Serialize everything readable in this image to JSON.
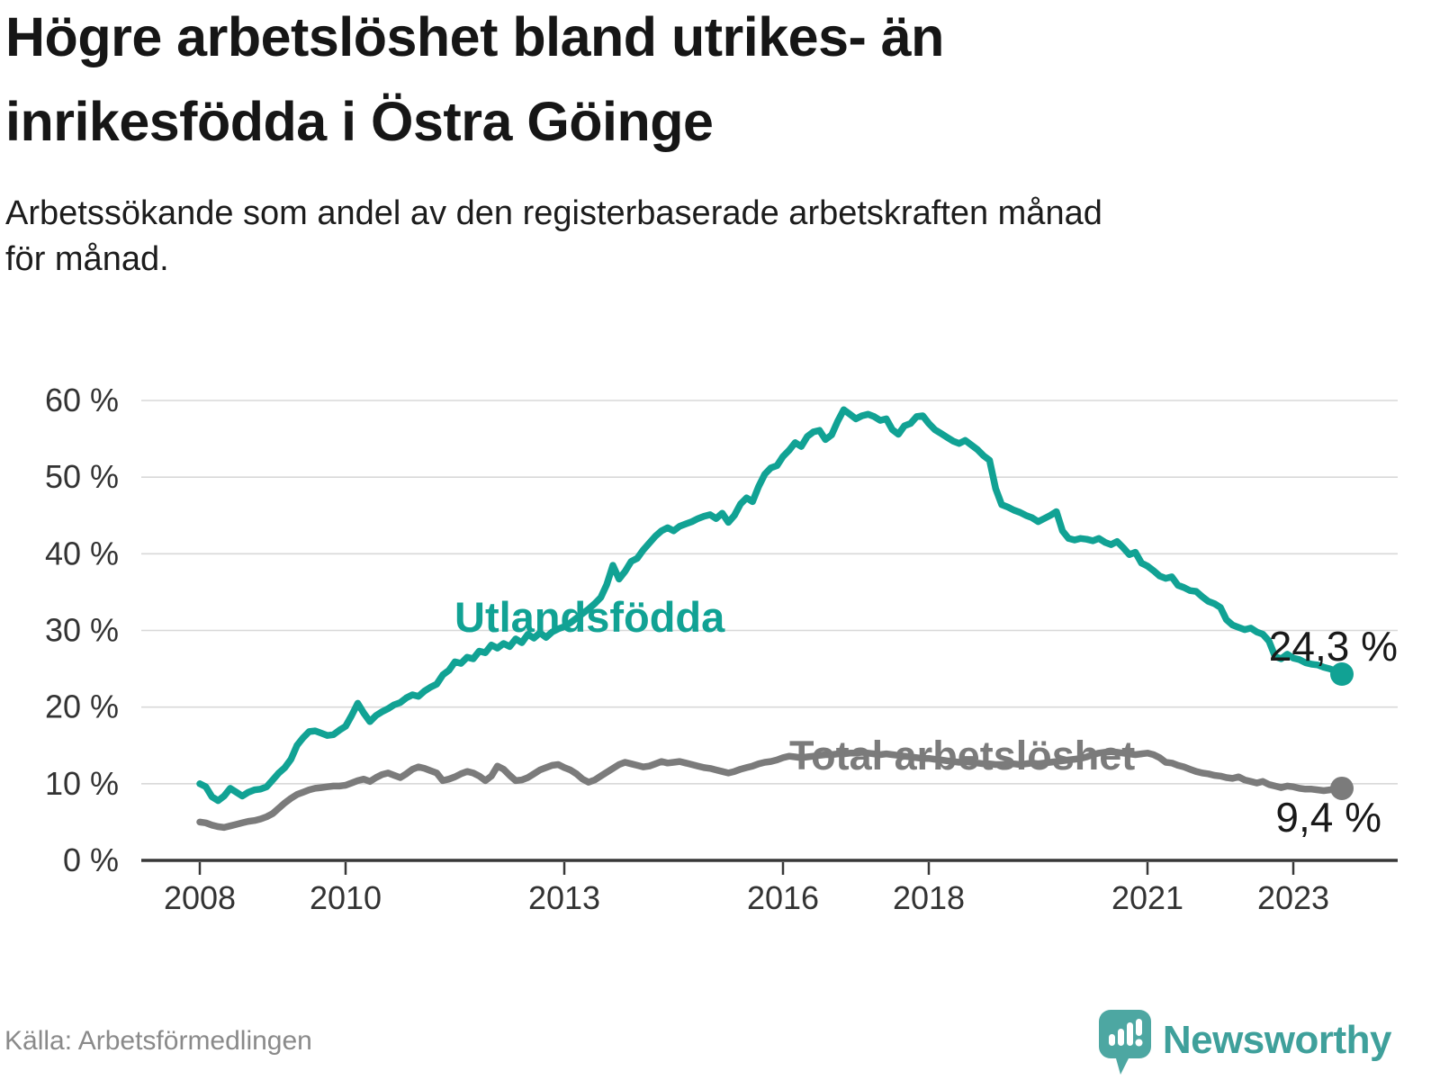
{
  "chart_data": {
    "type": "line",
    "title": "Högre arbetslöshet bland utrikes- än inrikesfödda i Östra Göinge",
    "title_lines": [
      "Högre arbetslöshet bland utrikes- än",
      "inrikesfödda i Östra Göinge"
    ],
    "subtitle_lines": [
      "Arbetssökande som andel av den registerbaserade arbetskraften månad",
      "för månad."
    ],
    "source": "Källa: Arbetsförmedlingen",
    "x_start_year": 2008,
    "x_step_months": 1,
    "x_end": "2023-09",
    "ylim": [
      0,
      60
    ],
    "grid": "horizontal",
    "legend_position": "inline-labels",
    "y_ticks": [
      {
        "label": "0 %",
        "value": 0
      },
      {
        "label": "10 %",
        "value": 10
      },
      {
        "label": "20 %",
        "value": 20
      },
      {
        "label": "30 %",
        "value": 30
      },
      {
        "label": "40 %",
        "value": 40
      },
      {
        "label": "50 %",
        "value": 50
      },
      {
        "label": "60 %",
        "value": 60
      }
    ],
    "x_ticks": [
      {
        "label": "2008",
        "year": 2008
      },
      {
        "label": "2010",
        "year": 2010
      },
      {
        "label": "2013",
        "year": 2013
      },
      {
        "label": "2016",
        "year": 2016
      },
      {
        "label": "2018",
        "year": 2018
      },
      {
        "label": "2021",
        "year": 2021
      },
      {
        "label": "2023",
        "year": 2023
      }
    ],
    "series": [
      {
        "name": "Utlandsfödda",
        "color": "#11a294",
        "end_label": "24,3 %",
        "last_value": 24.3,
        "values": [
          10.0,
          9.6,
          8.3,
          7.8,
          8.4,
          9.4,
          8.9,
          8.4,
          8.9,
          9.2,
          9.3,
          9.6,
          10.5,
          11.4,
          12.1,
          13.2,
          15.0,
          16.0,
          16.8,
          16.9,
          16.6,
          16.3,
          16.4,
          17.0,
          17.5,
          18.9,
          20.5,
          19.2,
          18.1,
          18.9,
          19.4,
          19.8,
          20.3,
          20.6,
          21.2,
          21.6,
          21.4,
          22.1,
          22.6,
          23.0,
          24.2,
          24.8,
          25.9,
          25.7,
          26.5,
          26.3,
          27.3,
          27.1,
          28.1,
          27.7,
          28.3,
          27.9,
          28.9,
          28.4,
          29.5,
          29.0,
          29.7,
          29.1,
          29.8,
          30.2,
          30.5,
          31.0,
          31.6,
          32.2,
          32.8,
          33.5,
          34.3,
          36.0,
          38.5,
          36.7,
          37.7,
          39.0,
          39.4,
          40.5,
          41.4,
          42.3,
          43.0,
          43.4,
          43.0,
          43.6,
          43.9,
          44.2,
          44.6,
          44.9,
          45.1,
          44.6,
          45.3,
          44.1,
          45.0,
          46.5,
          47.3,
          46.8,
          48.8,
          50.4,
          51.2,
          51.5,
          52.7,
          53.5,
          54.5,
          54.0,
          55.3,
          55.9,
          56.1,
          54.9,
          55.5,
          57.3,
          58.8,
          58.2,
          57.6,
          58.0,
          58.2,
          57.9,
          57.4,
          57.6,
          56.2,
          55.6,
          56.7,
          57.0,
          57.9,
          58.0,
          57.0,
          56.2,
          55.7,
          55.2,
          54.7,
          54.4,
          54.8,
          54.2,
          53.6,
          52.8,
          52.2,
          48.5,
          46.4,
          46.1,
          45.7,
          45.4,
          45.0,
          44.7,
          44.2,
          44.6,
          45.0,
          45.5,
          43.0,
          42.0,
          41.8,
          42.0,
          41.9,
          41.7,
          42.0,
          41.5,
          41.2,
          41.6,
          40.8,
          39.9,
          40.2,
          38.8,
          38.4,
          37.8,
          37.1,
          36.8,
          37.0,
          35.9,
          35.6,
          35.2,
          35.1,
          34.4,
          33.8,
          33.5,
          33.0,
          31.4,
          30.7,
          30.4,
          30.1,
          30.3,
          29.8,
          29.5,
          28.6,
          26.6,
          26.3,
          26.9,
          26.4,
          26.2,
          25.8,
          25.6,
          25.5,
          25.2,
          25.0,
          24.7,
          24.3
        ]
      },
      {
        "name": "Total arbetslöshet",
        "color": "#7b7b7b",
        "end_label": "9,4 %",
        "last_value": 9.4,
        "values": [
          5.0,
          4.9,
          4.6,
          4.4,
          4.3,
          4.5,
          4.7,
          4.9,
          5.1,
          5.2,
          5.4,
          5.7,
          6.1,
          6.8,
          7.5,
          8.1,
          8.6,
          8.9,
          9.2,
          9.4,
          9.5,
          9.6,
          9.7,
          9.7,
          9.8,
          10.1,
          10.4,
          10.6,
          10.3,
          10.8,
          11.2,
          11.4,
          11.1,
          10.8,
          11.3,
          11.9,
          12.2,
          12.0,
          11.7,
          11.4,
          10.4,
          10.6,
          10.9,
          11.3,
          11.6,
          11.4,
          11.0,
          10.4,
          11.0,
          12.3,
          11.9,
          11.1,
          10.4,
          10.5,
          10.8,
          11.3,
          11.8,
          12.1,
          12.4,
          12.5,
          12.1,
          11.8,
          11.3,
          10.6,
          10.2,
          10.5,
          11.0,
          11.5,
          12.0,
          12.5,
          12.8,
          12.6,
          12.4,
          12.2,
          12.3,
          12.6,
          12.9,
          12.7,
          12.8,
          12.9,
          12.7,
          12.5,
          12.3,
          12.1,
          12.0,
          11.8,
          11.6,
          11.4,
          11.6,
          11.9,
          12.1,
          12.3,
          12.6,
          12.8,
          12.9,
          13.1,
          13.4,
          13.6,
          13.5,
          13.4,
          13.5,
          13.6,
          13.7,
          13.8,
          13.8,
          13.9,
          13.9,
          14.0,
          14.0,
          14.1,
          14.0,
          13.9,
          13.8,
          13.9,
          13.8,
          13.7,
          13.6,
          13.5,
          13.4,
          13.3,
          13.3,
          13.2,
          13.1,
          13.0,
          12.9,
          12.8,
          12.9,
          12.8,
          12.7,
          12.6,
          12.6,
          12.5,
          12.5,
          12.6,
          12.6,
          12.5,
          12.6,
          12.7,
          12.6,
          12.7,
          12.8,
          12.9,
          13.0,
          13.1,
          13.2,
          13.3,
          13.5,
          13.8,
          14.0,
          14.1,
          14.2,
          14.1,
          14.0,
          13.9,
          13.8,
          13.9,
          14.0,
          13.8,
          13.4,
          12.8,
          12.7,
          12.4,
          12.2,
          11.9,
          11.6,
          11.4,
          11.3,
          11.1,
          11.0,
          10.8,
          10.7,
          10.9,
          10.5,
          10.3,
          10.1,
          10.3,
          9.9,
          9.7,
          9.5,
          9.7,
          9.6,
          9.4,
          9.3,
          9.3,
          9.2,
          9.1,
          9.2,
          9.3,
          9.4
        ]
      }
    ],
    "colors": {
      "accent_teal": "#11a294",
      "line_gray": "#7b7b7b",
      "gridline": "#d8d8d8",
      "axis": "#383838",
      "tick_text": "#333333",
      "value_label_text": "#191919",
      "title_text": "#161616",
      "source_text": "#8a8a8a",
      "brand_teal": "#3fa09b",
      "brand_icon_teal": "#4da7a2"
    }
  },
  "footer": {
    "brand": "Newsworthy"
  }
}
